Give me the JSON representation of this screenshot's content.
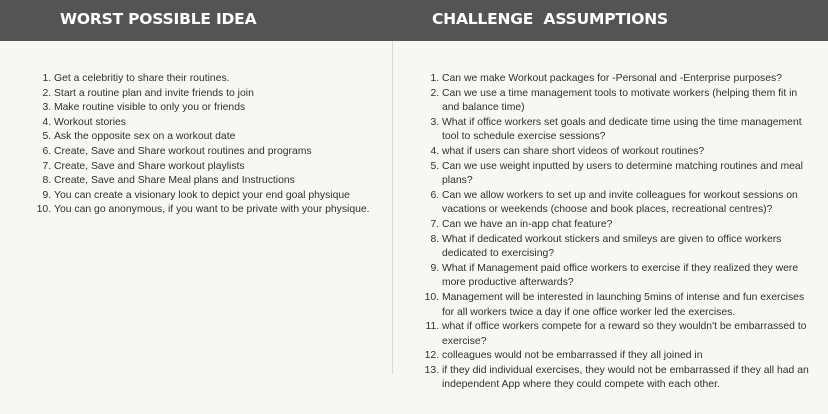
{
  "left": {
    "title": "WORST POSSIBLE IDEA",
    "items": [
      "Get a celebritiy to share their routines.",
      "Start a routine plan and invite friends to join",
      "Make routine visible to only you or friends",
      "Workout stories",
      "Ask the opposite sex on a workout date",
      "Create, Save and Share workout routines and programs",
      "Create, Save and Share workout playlists",
      "Create, Save and Share Meal plans and Instructions",
      "You can create a visionary look to depict your end goal physique",
      "You can go anonymous, if you want to be private with your physique."
    ]
  },
  "right": {
    "title": "CHALLENGE  ASSUMPTIONS",
    "items": [
      "Can we make Workout packages for -Personal and -Enterprise purposes?",
      "Can we use a time management tools to motivate workers (helping them fit in and balance time)",
      "What if office workers set goals and dedicate time using the time management tool to schedule exercise sessions?",
      "what if users can share short videos of workout routines?",
      "Can we use weight inputted by users to determine matching routines and meal plans?",
      "Can we allow workers to set up and invite colleagues for workout sessions on vacations or weekends (choose and book places, recreational centres)?",
      "Can we have an in-app chat feature?",
      "What if dedicated workout stickers and smileys are given to office workers dedicated to exercising?",
      "What if Management paid office workers to exercise if they realized they were more productive afterwards?",
      "Management will be interested in launching 5mins of intense and fun exercises for all workers twice a day if one office worker led the exercises.",
      "what if office workers compete for a reward so they wouldn't be embarrassed to exercise?",
      "colleagues would not be embarrassed if they all joined in",
      "if they did individual exercises, they would not be embarrassed if they all had an independent App where they could compete with each other."
    ]
  }
}
